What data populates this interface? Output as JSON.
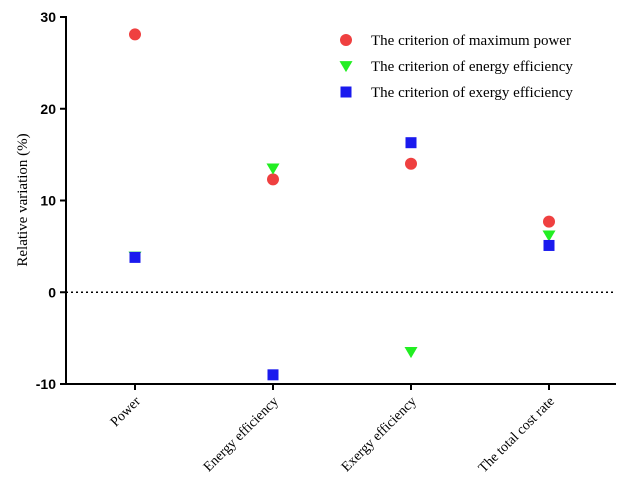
{
  "chart_data": {
    "type": "scatter",
    "title": "",
    "xlabel": "",
    "ylabel": "Relative variation  (%)",
    "categories": [
      "Power",
      "Energy efficiency",
      "Exergy efficiency",
      "The total cost rate"
    ],
    "ylim": [
      -10,
      30
    ],
    "yticks": [
      -10,
      0,
      10,
      20,
      30
    ],
    "reference_line": {
      "y": 0,
      "style": "dotted"
    },
    "grid": false,
    "legend_position": "top-right",
    "series": [
      {
        "name": "The criterion of maximum power",
        "marker": "circle",
        "color": "#ef4040",
        "values": [
          28.1,
          12.3,
          14.0,
          7.7
        ]
      },
      {
        "name": "The criterion of energy efficiency",
        "marker": "triangle-down",
        "color": "#22ee22",
        "values": [
          3.9,
          13.5,
          -6.5,
          6.2
        ]
      },
      {
        "name": "The criterion of exergy efficiency",
        "marker": "square",
        "color": "#1a1aee",
        "values": [
          3.8,
          -9.0,
          16.3,
          5.1
        ]
      }
    ]
  }
}
